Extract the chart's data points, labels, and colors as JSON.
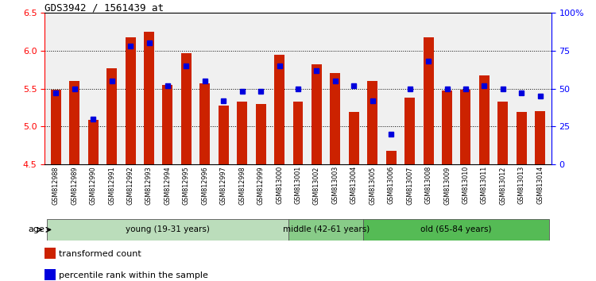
{
  "title": "GDS3942 / 1561439_at",
  "samples": [
    "GSM812988",
    "GSM812989",
    "GSM812990",
    "GSM812991",
    "GSM812992",
    "GSM812993",
    "GSM812994",
    "GSM812995",
    "GSM812996",
    "GSM812997",
    "GSM812998",
    "GSM812999",
    "GSM813000",
    "GSM813001",
    "GSM813002",
    "GSM813003",
    "GSM813004",
    "GSM813005",
    "GSM813006",
    "GSM813007",
    "GSM813008",
    "GSM813009",
    "GSM813010",
    "GSM813011",
    "GSM813012",
    "GSM813013",
    "GSM813014"
  ],
  "bar_values": [
    5.48,
    5.6,
    5.09,
    5.77,
    6.17,
    6.25,
    5.55,
    5.97,
    5.57,
    5.27,
    5.33,
    5.3,
    5.94,
    5.33,
    5.82,
    5.7,
    5.19,
    5.6,
    4.68,
    5.38,
    6.18,
    5.47,
    5.48,
    5.67,
    5.33,
    5.19,
    5.2
  ],
  "percentile_values": [
    47,
    50,
    30,
    55,
    78,
    80,
    52,
    65,
    55,
    42,
    48,
    48,
    65,
    50,
    62,
    55,
    52,
    42,
    20,
    50,
    68,
    50,
    50,
    52,
    50,
    47,
    45
  ],
  "ylim": [
    4.5,
    6.5
  ],
  "yticks": [
    4.5,
    5.0,
    5.5,
    6.0,
    6.5
  ],
  "y2ticks": [
    0,
    25,
    50,
    75,
    100
  ],
  "y2labels": [
    "0",
    "25",
    "50",
    "75",
    "100%"
  ],
  "bar_color": "#CC2200",
  "percentile_color": "#0000DD",
  "plot_bg": "#F0F0F0",
  "groups": [
    {
      "label": "young (19-31 years)",
      "start": 0,
      "end": 13,
      "color": "#BBDDBB"
    },
    {
      "label": "middle (42-61 years)",
      "start": 13,
      "end": 17,
      "color": "#88CC88"
    },
    {
      "label": "old (65-84 years)",
      "start": 17,
      "end": 27,
      "color": "#55BB55"
    }
  ],
  "legend_items": [
    {
      "color": "#CC2200",
      "label": "transformed count"
    },
    {
      "color": "#0000DD",
      "label": "percentile rank within the sample"
    }
  ],
  "gridlines": [
    5.0,
    5.5,
    6.0
  ]
}
